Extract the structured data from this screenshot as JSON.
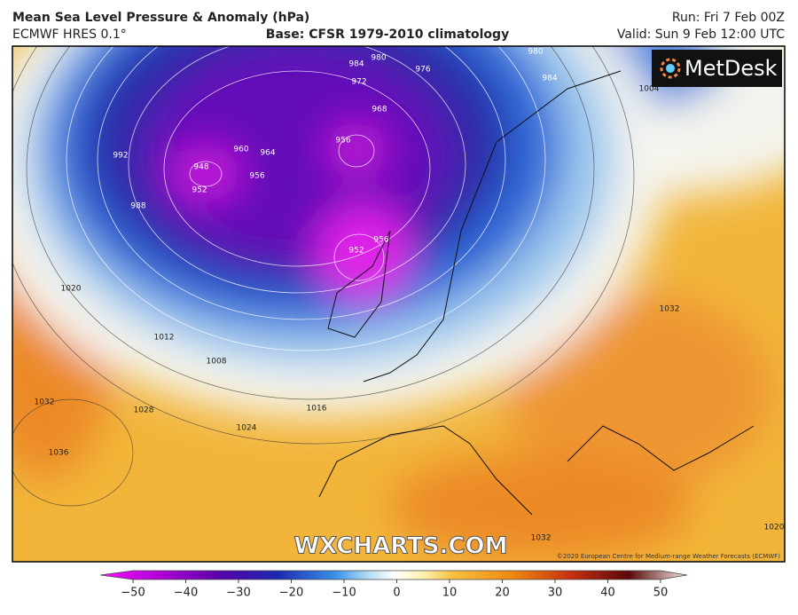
{
  "header": {
    "title": "Mean Sea Level Pressure & Anomaly (hPa)",
    "model": "ECMWF HRES 0.1°",
    "base": "Base: CFSR 1979-2010 climatology",
    "run": "Run: Fri 7 Feb 00Z",
    "valid": "Valid: Sun 9 Feb 12:00 UTC"
  },
  "logo": "MetDesk",
  "watermark": "WXCHARTS.COM",
  "copyright": "©2020 European Centre for Medium-range Weather Forecasts (ECMWF)",
  "isobar_labels": [
    948,
    952,
    960,
    964,
    956,
    956,
    968,
    972,
    976,
    980,
    984,
    980,
    984,
    952,
    956,
    992,
    988,
    1020,
    1012,
    1008,
    1016,
    1024,
    1028,
    1032,
    1036,
    1032,
    1032,
    1020,
    1004
  ],
  "colorbar": {
    "range": [
      -50,
      50
    ],
    "ticks": [
      {
        "value": -50,
        "label": "−50"
      },
      {
        "value": -40,
        "label": "−40"
      },
      {
        "value": -30,
        "label": "−30"
      },
      {
        "value": -20,
        "label": "−20"
      },
      {
        "value": -10,
        "label": "−10"
      },
      0,
      10,
      20,
      30,
      40,
      50
    ]
  }
}
